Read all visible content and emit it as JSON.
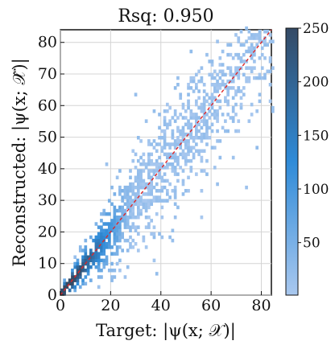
{
  "chart_data": {
    "type": "heatmap",
    "title": "Rsq: 0.950",
    "xlabel": "Target: |ψ(x; 𝒳)|",
    "ylabel": "Reconstructed: |ψ(x; 𝒳̂)|",
    "xlim": [
      0,
      84
    ],
    "ylim": [
      0,
      84
    ],
    "x_ticks": [
      0,
      20,
      40,
      60,
      80
    ],
    "y_ticks": [
      0,
      10,
      20,
      30,
      40,
      50,
      60,
      70,
      80
    ],
    "grid": true,
    "colorbar": {
      "range": [
        1,
        250
      ],
      "ticks": [
        50,
        100,
        150,
        200,
        250
      ],
      "colors": [
        "#a9c8ef",
        "#2f8bd8",
        "#344a65"
      ]
    },
    "reference_line": {
      "points": [
        [
          0,
          0
        ],
        [
          84,
          84
        ]
      ],
      "color": "#e02626",
      "style": "dashed"
    },
    "density_profile": [
      {
        "x": 0,
        "spread": 1.5
      },
      {
        "x": 10,
        "spread": 3.5
      },
      {
        "x": 20,
        "spread": 7
      },
      {
        "x": 40,
        "spread": 9
      },
      {
        "x": 60,
        "spread": 10
      },
      {
        "x": 80,
        "spread": 11
      }
    ],
    "rsq": 0.95
  }
}
